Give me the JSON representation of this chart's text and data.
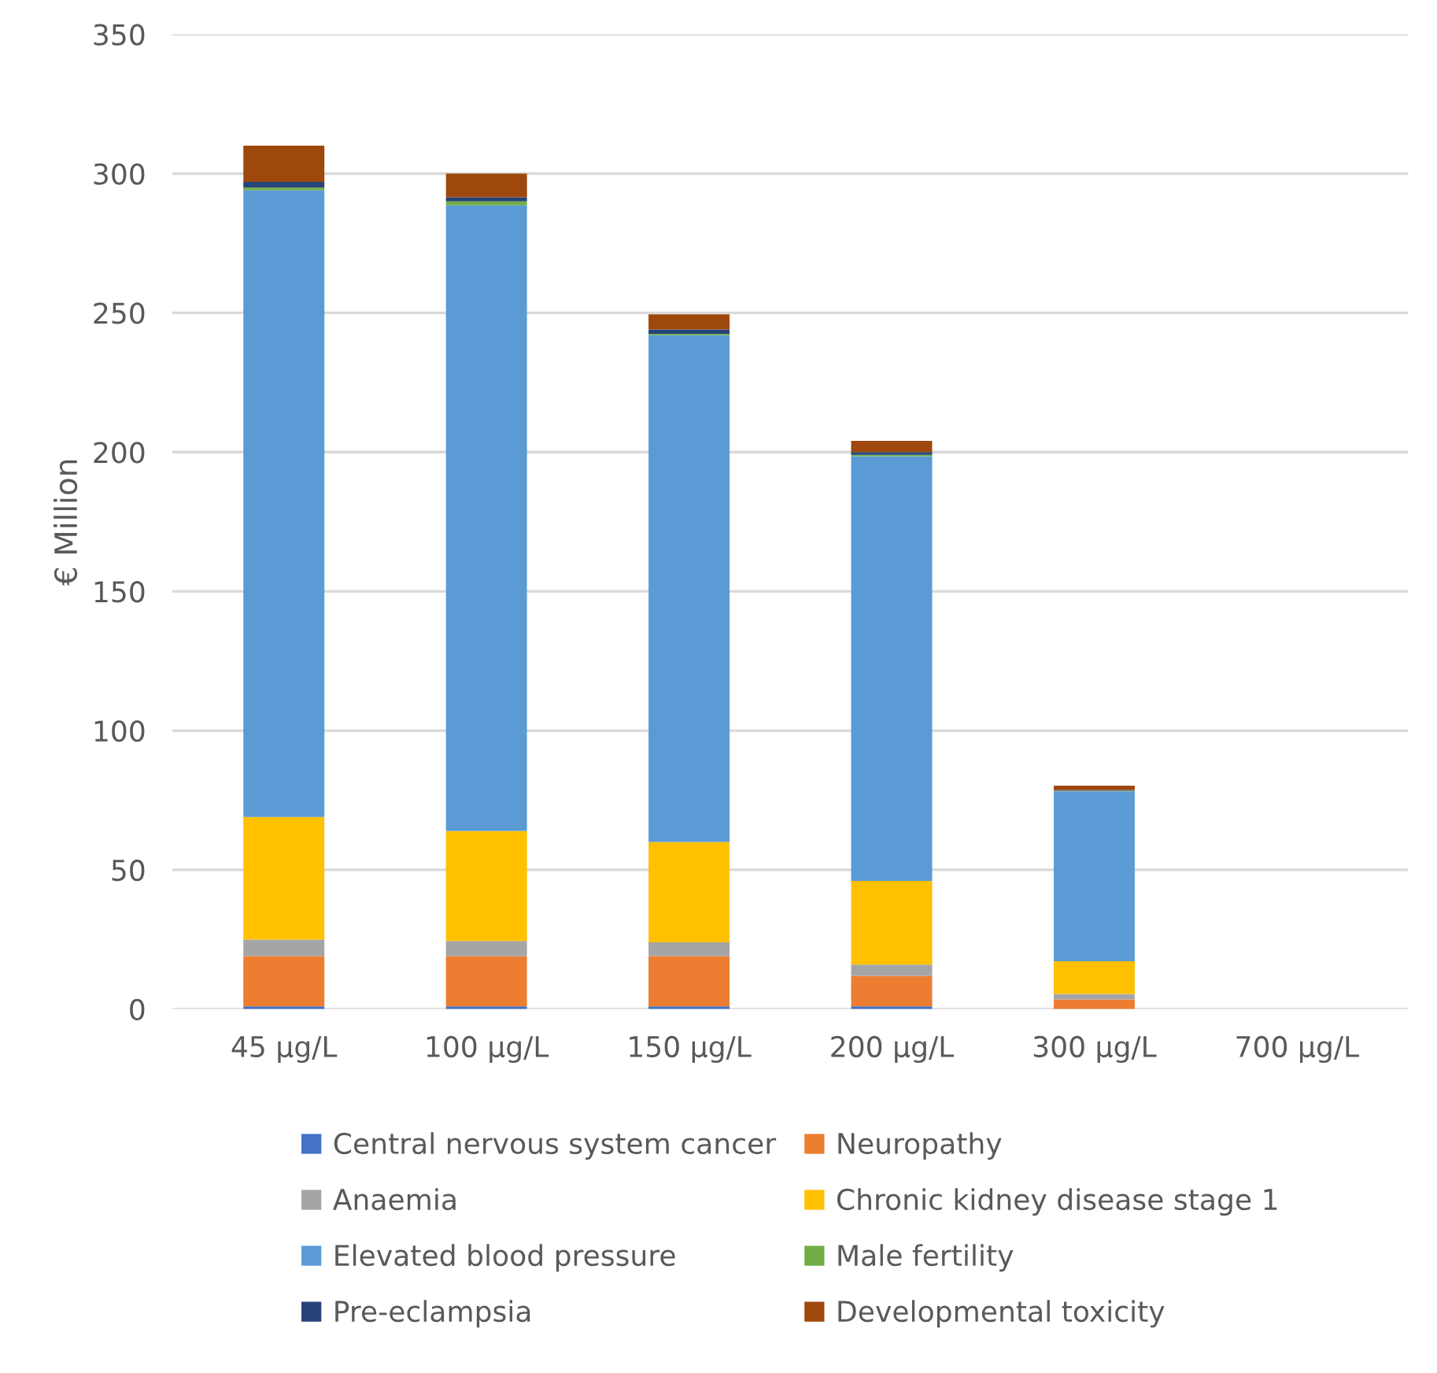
{
  "chart_data": {
    "type": "bar",
    "stacked": true,
    "ylabel": "€ Million",
    "categories": [
      "45 µg/L",
      "100 µg/L",
      "150 µg/L",
      "200 µg/L",
      "300 µg/L",
      "700 µg/L"
    ],
    "ylim": [
      0,
      350
    ],
    "yticks": [
      0,
      50,
      100,
      150,
      200,
      250,
      300,
      350
    ],
    "grid": "y",
    "legend": "bottom",
    "series": [
      {
        "name": "Central nervous system cancer",
        "color": "#4472c4",
        "values": [
          1,
          1,
          1,
          1,
          null,
          0
        ]
      },
      {
        "name": "Neuropathy",
        "color": "#ed7d31",
        "values": [
          18,
          18,
          18,
          11,
          3.5,
          0
        ]
      },
      {
        "name": "Anaemia",
        "color": "#a5a5a5",
        "values": [
          6,
          5.5,
          5,
          4,
          2,
          0
        ]
      },
      {
        "name": "Chronic kidney disease stage 1",
        "color": "#ffc000",
        "values": [
          44,
          39.5,
          36,
          30,
          11.7,
          0
        ]
      },
      {
        "name": "Elevated blood pressure",
        "color": "#5b9bd5",
        "values": [
          225,
          224.6,
          182,
          152.5,
          61,
          0
        ]
      },
      {
        "name": "Male fertility",
        "color": "#70ad47",
        "values": [
          1,
          1.4,
          0.5,
          0.5,
          0.2,
          0
        ]
      },
      {
        "name": "Pre-eclampsia",
        "color": "#264478",
        "values": [
          2,
          1.5,
          1.5,
          1,
          0.3,
          0
        ]
      },
      {
        "name": "Developmental toxicity",
        "color": "#9e480e",
        "values": [
          13,
          8.5,
          5.5,
          4,
          1.5,
          0
        ]
      }
    ]
  }
}
